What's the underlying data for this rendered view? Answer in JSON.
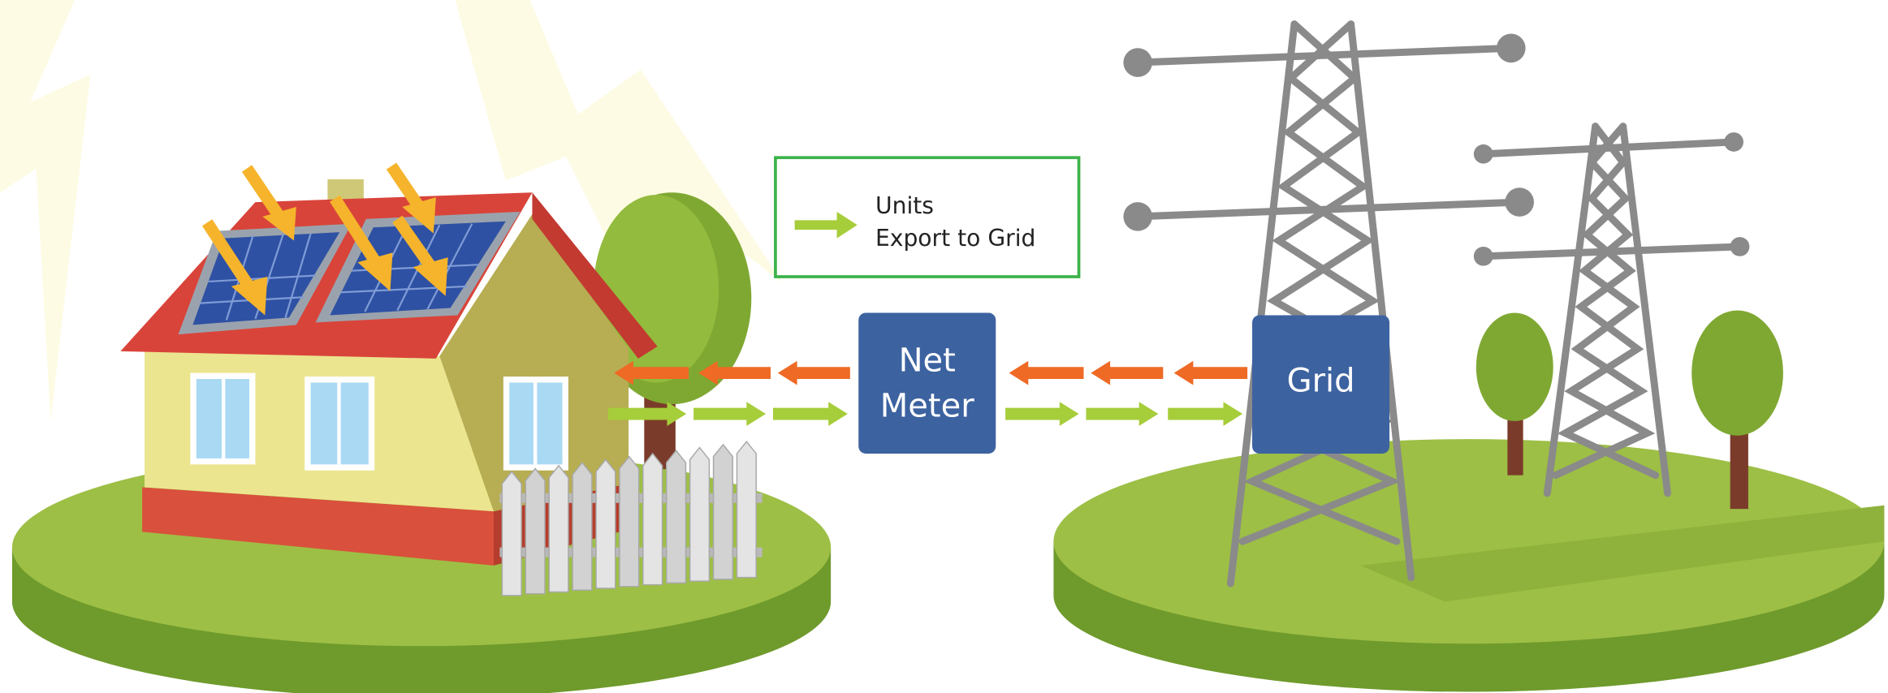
{
  "legend": {
    "lines": [
      "Units",
      "Export to Grid"
    ]
  },
  "nodes": [
    {
      "label": [
        "Net",
        "Meter"
      ]
    },
    {
      "label": "Grid"
    }
  ]
}
